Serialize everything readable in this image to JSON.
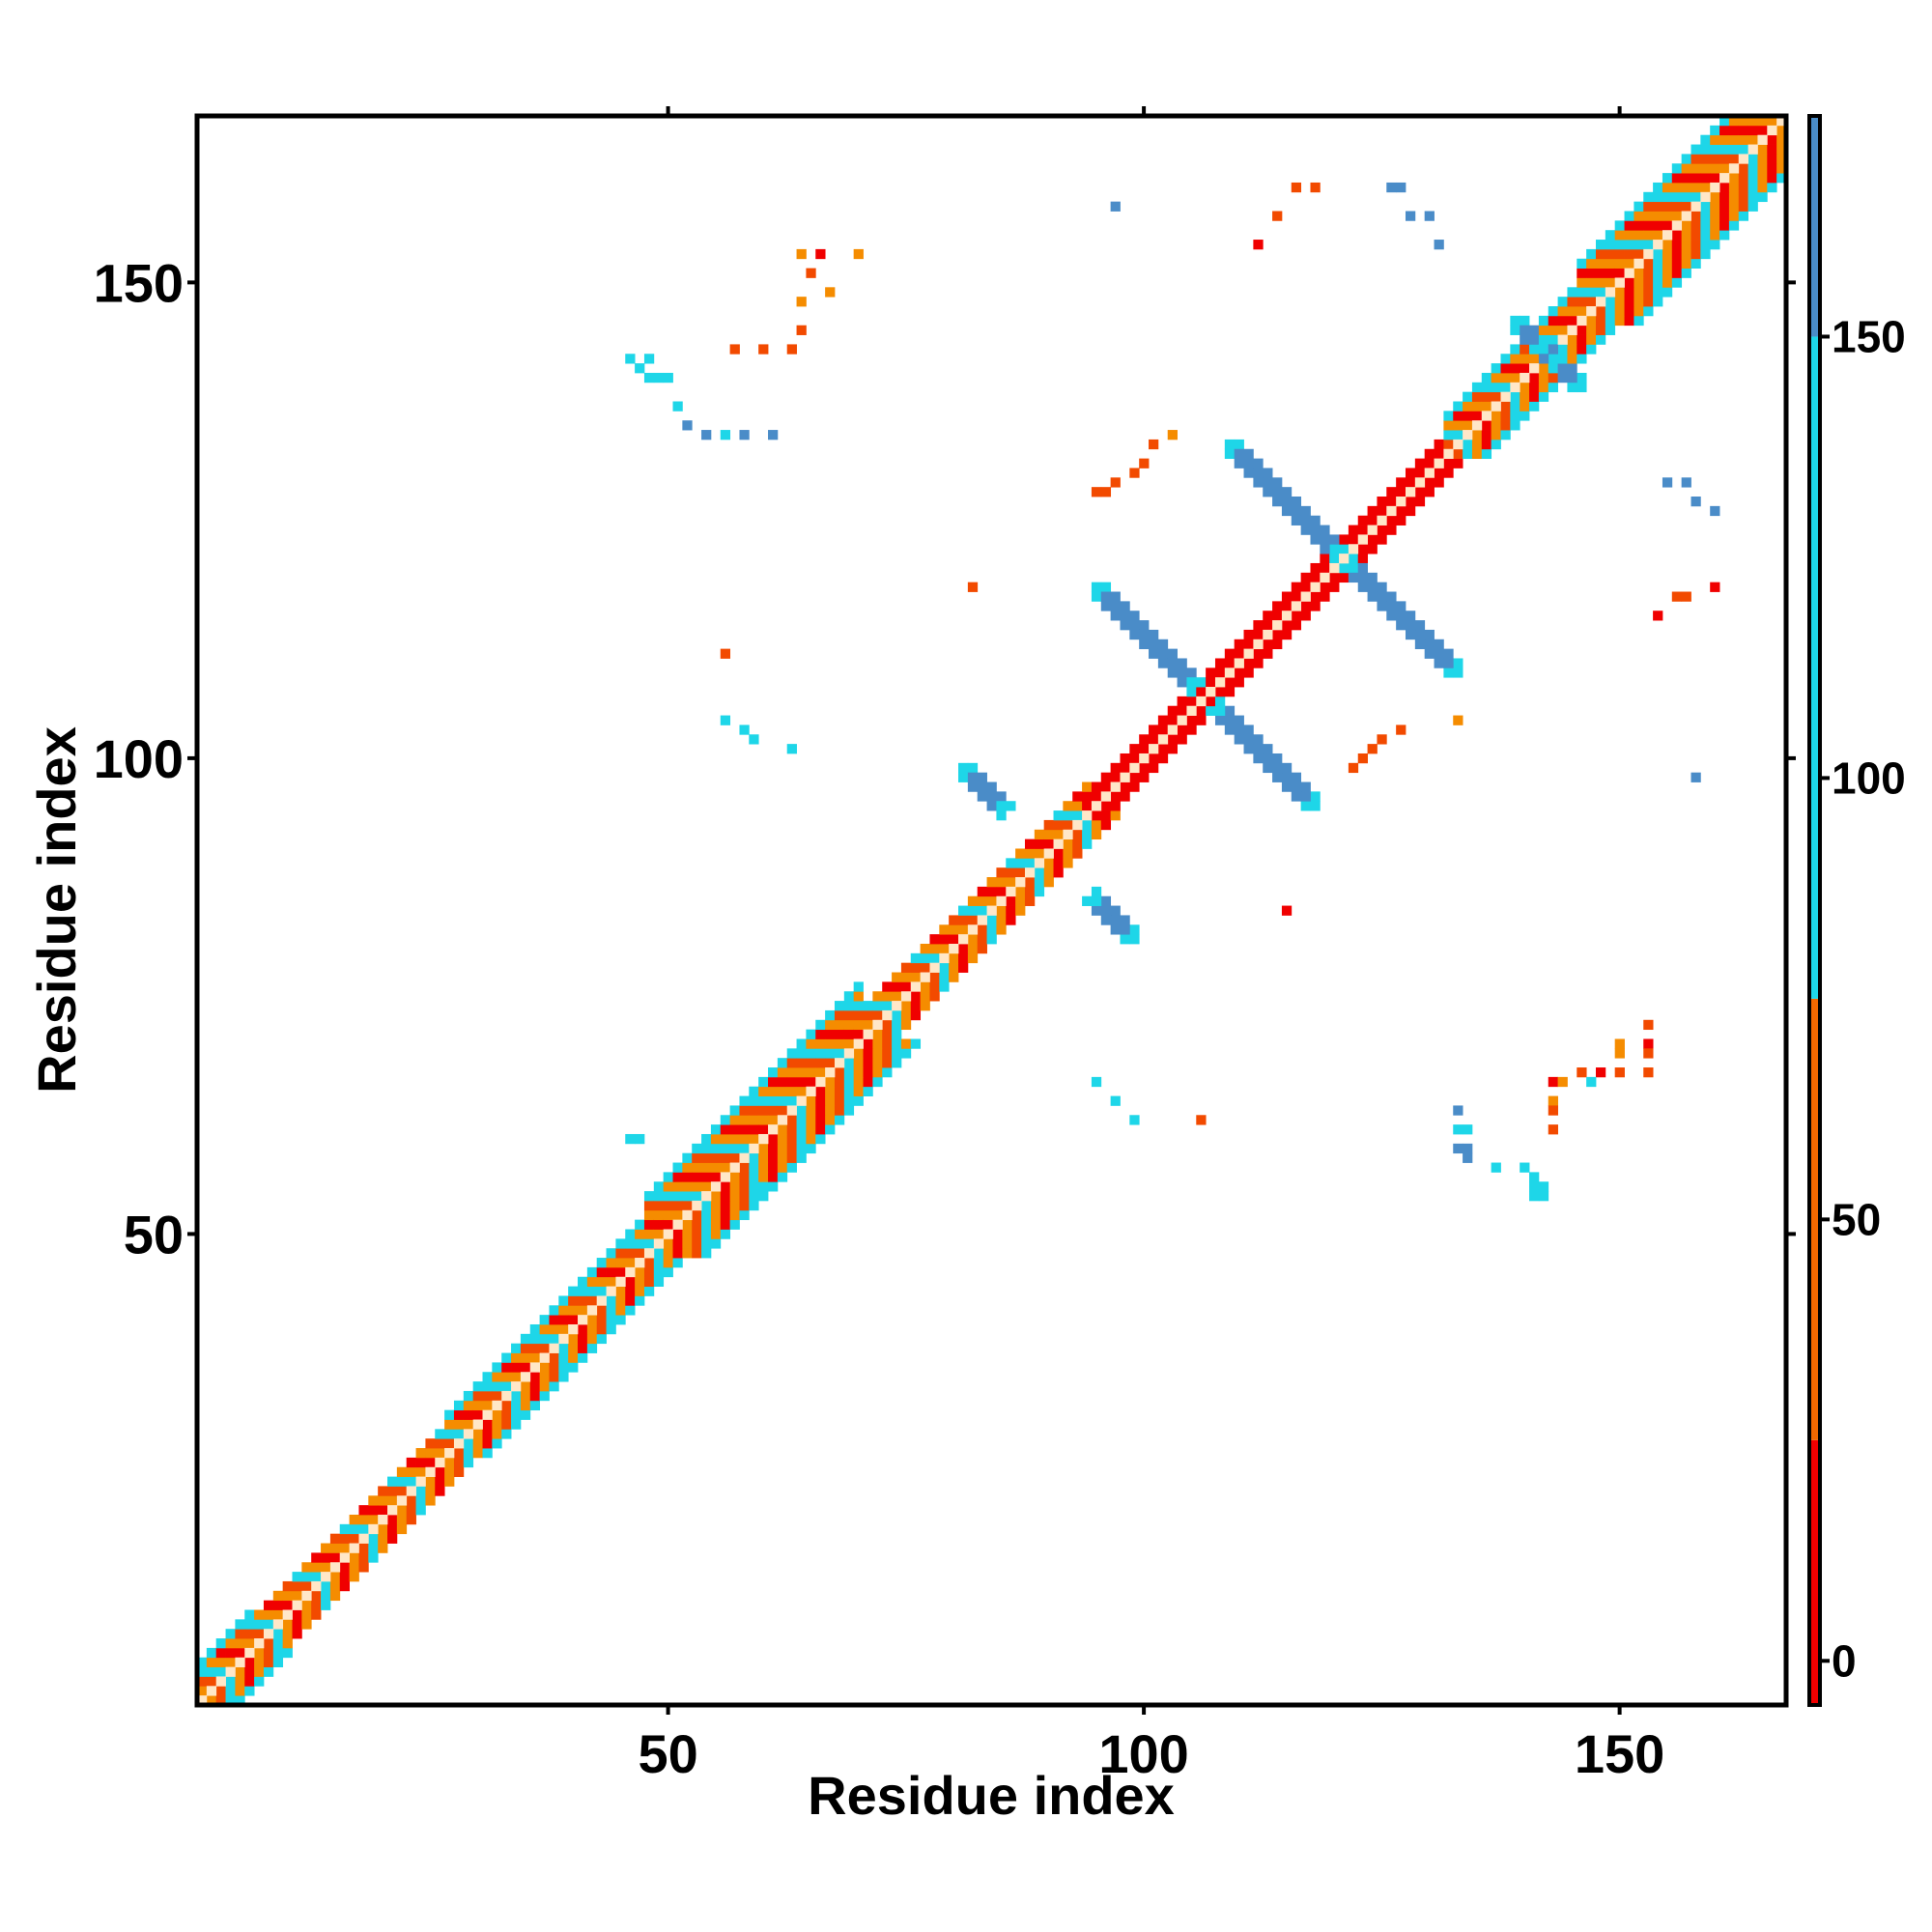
{
  "chart_data": {
    "type": "heatmap",
    "xlabel": "Residue index",
    "ylabel": "Residue index",
    "xlim": [
      1,
      167
    ],
    "ylim": [
      1,
      167
    ],
    "x_ticks": [
      50,
      100,
      150
    ],
    "y_ticks": [
      50,
      100,
      150
    ],
    "colorbar": {
      "ticks": [
        0,
        50,
        100,
        150
      ],
      "range": [
        -5,
        175
      ],
      "bands": [
        {
          "from": -5,
          "to": 25,
          "color": "#f00000"
        },
        {
          "from": 25,
          "to": 75,
          "color": "#f26800"
        },
        {
          "from": 75,
          "to": 150,
          "color": "#1ed6e8"
        },
        {
          "from": 150,
          "to": 175,
          "color": "#4a8cc8"
        }
      ]
    },
    "palette": {
      "red": "#f00000",
      "orange_red": "#f24a00",
      "orange": "#f58c00",
      "cyan": "#1ed6e8",
      "steel_blue": "#4a8cc8",
      "diag_light": "#ffe7c8"
    },
    "cells": {
      "main_diagonal": {
        "from": 1,
        "to": 167
      },
      "helix_segments": [
        {
          "from": 1,
          "to": 6,
          "half_width": 4
        },
        {
          "from": 6,
          "to": 27,
          "half_width": 3
        },
        {
          "from": 27,
          "to": 48,
          "half_width": 4
        },
        {
          "from": 48,
          "to": 70,
          "half_width": 6
        },
        {
          "from": 70,
          "to": 78,
          "half_width": 3
        },
        {
          "from": 78,
          "to": 94,
          "half_width": 3
        },
        {
          "from": 94,
          "to": 132,
          "half_width": 2
        },
        {
          "from": 132,
          "to": 146,
          "half_width": 4
        },
        {
          "from": 146,
          "to": 167,
          "half_width": 6
        }
      ],
      "antiparallel_strands": [
        {
          "x_start": 95,
          "y_start": 118,
          "x_end": 105,
          "y_end": 108
        },
        {
          "x_start": 109,
          "y_start": 133,
          "x_end": 120,
          "y_end": 122
        },
        {
          "x_start": 81,
          "y_start": 99,
          "x_end": 85,
          "y_end": 95
        },
        {
          "x_start": 139,
          "y_start": 146,
          "x_end": 143,
          "y_end": 142
        }
      ],
      "scattered_contacts": [
        [
          116,
          160,
          "orange_red"
        ],
        [
          118,
          160,
          "orange_red"
        ],
        [
          126,
          160,
          "steel_blue"
        ],
        [
          127,
          160,
          "steel_blue"
        ],
        [
          97,
          158,
          "steel_blue"
        ],
        [
          128,
          157,
          "steel_blue"
        ],
        [
          130,
          157,
          "steel_blue"
        ],
        [
          114,
          157,
          "orange_red"
        ],
        [
          112,
          154,
          "red"
        ],
        [
          131,
          154,
          "steel_blue"
        ],
        [
          64,
          153,
          "orange"
        ],
        [
          66,
          153,
          "red"
        ],
        [
          70,
          153,
          "orange"
        ],
        [
          65,
          151,
          "orange_red"
        ],
        [
          67,
          149,
          "orange"
        ],
        [
          64,
          148,
          "orange"
        ],
        [
          64,
          145,
          "orange_red"
        ],
        [
          60,
          143,
          "orange_red"
        ],
        [
          63,
          143,
          "orange_red"
        ],
        [
          57,
          143,
          "orange_red"
        ],
        [
          46,
          142,
          "cyan"
        ],
        [
          47,
          141,
          "cyan"
        ],
        [
          48,
          142,
          "cyan"
        ],
        [
          49,
          140,
          "cyan"
        ],
        [
          48,
          140,
          "cyan"
        ],
        [
          50,
          140,
          "cyan"
        ],
        [
          51,
          137,
          "cyan"
        ],
        [
          52,
          135,
          "steel_blue"
        ],
        [
          54,
          134,
          "steel_blue"
        ],
        [
          56,
          134,
          "cyan"
        ],
        [
          58,
          134,
          "steel_blue"
        ],
        [
          61,
          134,
          "steel_blue"
        ],
        [
          103,
          134,
          "orange"
        ],
        [
          101,
          133,
          "orange_red"
        ],
        [
          100,
          131,
          "orange_red"
        ],
        [
          99,
          130,
          "orange_red"
        ],
        [
          97,
          129,
          "orange_red"
        ],
        [
          96,
          128,
          "orange_red"
        ],
        [
          95,
          128,
          "orange_red"
        ],
        [
          82,
          118,
          "orange_red"
        ],
        [
          155,
          129,
          "steel_blue"
        ],
        [
          157,
          129,
          "steel_blue"
        ],
        [
          158,
          127,
          "steel_blue"
        ],
        [
          160,
          126,
          "steel_blue"
        ],
        [
          160,
          118,
          "red"
        ],
        [
          156,
          117,
          "orange_red"
        ],
        [
          157,
          117,
          "orange_red"
        ],
        [
          154,
          115,
          "red"
        ],
        [
          56,
          111,
          "orange_red"
        ],
        [
          56,
          104,
          "cyan"
        ],
        [
          58,
          103,
          "cyan"
        ],
        [
          59,
          102,
          "cyan"
        ],
        [
          63,
          101,
          "cyan"
        ],
        [
          127,
          103,
          "orange_red"
        ],
        [
          125,
          102,
          "orange_red"
        ],
        [
          124,
          101,
          "orange_red"
        ],
        [
          123,
          100,
          "orange_red"
        ],
        [
          122,
          99,
          "orange_red"
        ],
        [
          133,
          104,
          "orange"
        ],
        [
          158,
          98,
          "steel_blue"
        ],
        [
          115,
          84,
          "red"
        ],
        [
          95,
          66,
          "cyan"
        ],
        [
          97,
          64,
          "cyan"
        ],
        [
          99,
          62,
          "cyan"
        ],
        [
          106,
          62,
          "orange_red"
        ],
        [
          153,
          72,
          "orange_red"
        ],
        [
          150,
          70,
          "orange"
        ],
        [
          153,
          70,
          "red"
        ],
        [
          150,
          69,
          "orange"
        ],
        [
          153,
          69,
          "orange_red"
        ],
        [
          146,
          67,
          "orange_red"
        ],
        [
          148,
          67,
          "red"
        ],
        [
          150,
          67,
          "orange_red"
        ],
        [
          153,
          67,
          "orange_red"
        ],
        [
          143,
          66,
          "red"
        ],
        [
          144,
          66,
          "orange"
        ],
        [
          147,
          66,
          "cyan"
        ],
        [
          143,
          64,
          "orange"
        ],
        [
          143,
          63,
          "orange_red"
        ],
        [
          143,
          61,
          "orange_red"
        ],
        [
          133,
          63,
          "steel_blue"
        ],
        [
          133,
          61,
          "cyan"
        ],
        [
          134,
          61,
          "cyan"
        ],
        [
          133,
          59,
          "steel_blue"
        ],
        [
          134,
          59,
          "steel_blue"
        ],
        [
          134,
          58,
          "steel_blue"
        ],
        [
          137,
          57,
          "cyan"
        ],
        [
          140,
          57,
          "cyan"
        ],
        [
          141,
          56,
          "cyan"
        ],
        [
          141,
          55,
          "cyan"
        ],
        [
          142,
          55,
          "cyan"
        ],
        [
          141,
          54,
          "cyan"
        ],
        [
          142,
          54,
          "cyan"
        ],
        [
          46,
          60,
          "cyan"
        ],
        [
          47,
          60,
          "cyan"
        ],
        [
          60,
          55,
          "cyan"
        ],
        [
          60,
          54,
          "cyan"
        ]
      ]
    }
  }
}
